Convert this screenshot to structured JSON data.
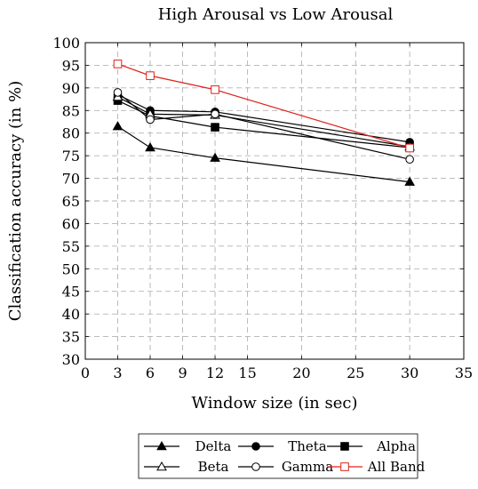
{
  "chart_data": {
    "type": "line",
    "title": "High Arousal vs Low Arousal",
    "xlabel": "Window size (in sec)",
    "ylabel": "Classification accuracy (in %)",
    "xlim": [
      0,
      35
    ],
    "ylim": [
      30,
      100
    ],
    "xticks": [
      0,
      3,
      6,
      9,
      12,
      15,
      20,
      25,
      30,
      35
    ],
    "yticks": [
      30,
      35,
      40,
      45,
      50,
      55,
      60,
      65,
      70,
      75,
      80,
      85,
      90,
      95,
      100
    ],
    "grid": true,
    "grid_style": "dashed",
    "legend_position": "bottom",
    "x": [
      3,
      6,
      12,
      30
    ],
    "series": [
      {
        "name": "Delta",
        "values": [
          81.5,
          76.8,
          74.5,
          69.2
        ],
        "marker": "triangle-filled",
        "color": "#000000"
      },
      {
        "name": "Theta",
        "values": [
          88.5,
          85.0,
          84.7,
          78.0
        ],
        "marker": "circle-filled",
        "color": "#000000"
      },
      {
        "name": "Alpha",
        "values": [
          87.2,
          83.8,
          81.3,
          76.8
        ],
        "marker": "square-filled",
        "color": "#000000"
      },
      {
        "name": "Beta",
        "values": [
          88.0,
          84.2,
          84.0,
          77.0
        ],
        "marker": "triangle-open",
        "color": "#000000"
      },
      {
        "name": "Gamma",
        "values": [
          89.0,
          83.0,
          84.2,
          74.2
        ],
        "marker": "circle-open",
        "color": "#000000"
      },
      {
        "name": "All Band",
        "values": [
          95.3,
          92.7,
          89.6,
          76.7
        ],
        "marker": "square-open",
        "color": "#e0201b"
      }
    ]
  }
}
